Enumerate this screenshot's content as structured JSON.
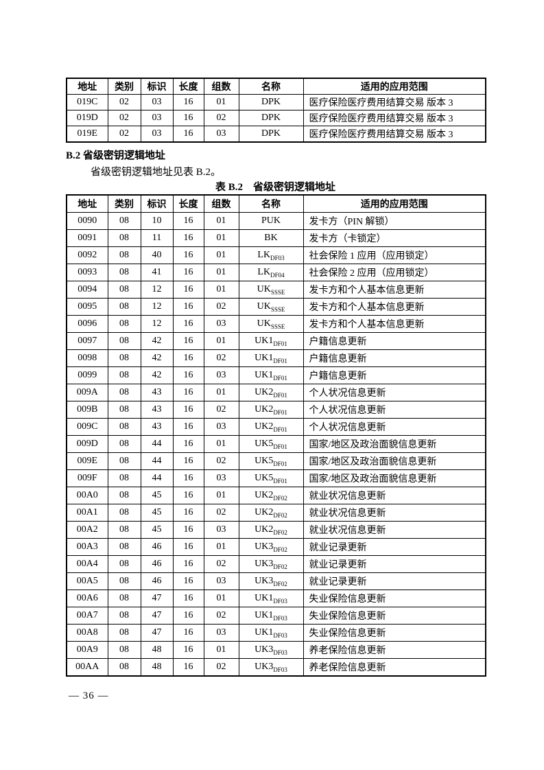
{
  "colors": {
    "text": "#000000",
    "background": "#ffffff",
    "table_border": "#000000"
  },
  "page": {
    "footer": "— 36 —"
  },
  "section": {
    "heading": "B.2 省级密钥逻辑地址",
    "paragraph": "省级密钥逻辑地址见表 B.2。"
  },
  "table_continued": {
    "headers": [
      "地址",
      "类别",
      "标识",
      "长度",
      "组数",
      "名称",
      "适用的应用范围"
    ],
    "rows": [
      {
        "address": "019C",
        "category": "02",
        "id": "03",
        "length": "16",
        "groups": "01",
        "name": {
          "base": "DPK",
          "sub": ""
        },
        "scope": "医疗保险医疗费用结算交易 版本 3"
      },
      {
        "address": "019D",
        "category": "02",
        "id": "03",
        "length": "16",
        "groups": "02",
        "name": {
          "base": "DPK",
          "sub": ""
        },
        "scope": "医疗保险医疗费用结算交易 版本 3"
      },
      {
        "address": "019E",
        "category": "02",
        "id": "03",
        "length": "16",
        "groups": "03",
        "name": {
          "base": "DPK",
          "sub": ""
        },
        "scope": "医疗保险医疗费用结算交易 版本 3"
      }
    ]
  },
  "table_b2": {
    "title": "表 B.2　省级密钥逻辑地址",
    "headers": [
      "地址",
      "类别",
      "标识",
      "长度",
      "组数",
      "名称",
      "适用的应用范围"
    ],
    "rows": [
      {
        "address": "0090",
        "category": "08",
        "id": "10",
        "length": "16",
        "groups": "01",
        "name": {
          "base": "PUK",
          "sub": ""
        },
        "scope": "发卡方（PIN 解锁）"
      },
      {
        "address": "0091",
        "category": "08",
        "id": "11",
        "length": "16",
        "groups": "01",
        "name": {
          "base": "BK",
          "sub": ""
        },
        "scope": "发卡方（卡锁定）"
      },
      {
        "address": "0092",
        "category": "08",
        "id": "40",
        "length": "16",
        "groups": "01",
        "name": {
          "base": "LK",
          "sub": "DF03"
        },
        "scope": "社会保险 1 应用（应用锁定）"
      },
      {
        "address": "0093",
        "category": "08",
        "id": "41",
        "length": "16",
        "groups": "01",
        "name": {
          "base": "LK",
          "sub": "DF04"
        },
        "scope": "社会保险 2 应用（应用锁定）"
      },
      {
        "address": "0094",
        "category": "08",
        "id": "12",
        "length": "16",
        "groups": "01",
        "name": {
          "base": "UK",
          "sub": "SSSE"
        },
        "scope": "发卡方和个人基本信息更新"
      },
      {
        "address": "0095",
        "category": "08",
        "id": "12",
        "length": "16",
        "groups": "02",
        "name": {
          "base": "UK",
          "sub": "SSSE"
        },
        "scope": "发卡方和个人基本信息更新"
      },
      {
        "address": "0096",
        "category": "08",
        "id": "12",
        "length": "16",
        "groups": "03",
        "name": {
          "base": "UK",
          "sub": "SSSE"
        },
        "scope": "发卡方和个人基本信息更新"
      },
      {
        "address": "0097",
        "category": "08",
        "id": "42",
        "length": "16",
        "groups": "01",
        "name": {
          "base": "UK1",
          "sub": "DF01"
        },
        "scope": "户籍信息更新"
      },
      {
        "address": "0098",
        "category": "08",
        "id": "42",
        "length": "16",
        "groups": "02",
        "name": {
          "base": "UK1",
          "sub": "DF01"
        },
        "scope": "户籍信息更新"
      },
      {
        "address": "0099",
        "category": "08",
        "id": "42",
        "length": "16",
        "groups": "03",
        "name": {
          "base": "UK1",
          "sub": "DF01"
        },
        "scope": "户籍信息更新"
      },
      {
        "address": "009A",
        "category": "08",
        "id": "43",
        "length": "16",
        "groups": "01",
        "name": {
          "base": "UK2",
          "sub": "DF01"
        },
        "scope": "个人状况信息更新"
      },
      {
        "address": "009B",
        "category": "08",
        "id": "43",
        "length": "16",
        "groups": "02",
        "name": {
          "base": "UK2",
          "sub": "DF01"
        },
        "scope": "个人状况信息更新"
      },
      {
        "address": "009C",
        "category": "08",
        "id": "43",
        "length": "16",
        "groups": "03",
        "name": {
          "base": "UK2",
          "sub": "DF01"
        },
        "scope": "个人状况信息更新"
      },
      {
        "address": "009D",
        "category": "08",
        "id": "44",
        "length": "16",
        "groups": "01",
        "name": {
          "base": "UK5",
          "sub": "DF01"
        },
        "scope": "国家/地区及政治面貌信息更新"
      },
      {
        "address": "009E",
        "category": "08",
        "id": "44",
        "length": "16",
        "groups": "02",
        "name": {
          "base": "UK5",
          "sub": "DF01"
        },
        "scope": "国家/地区及政治面貌信息更新"
      },
      {
        "address": "009F",
        "category": "08",
        "id": "44",
        "length": "16",
        "groups": "03",
        "name": {
          "base": "UK5",
          "sub": "DF01"
        },
        "scope": "国家/地区及政治面貌信息更新"
      },
      {
        "address": "00A0",
        "category": "08",
        "id": "45",
        "length": "16",
        "groups": "01",
        "name": {
          "base": "UK2",
          "sub": "DF02"
        },
        "scope": "就业状况信息更新"
      },
      {
        "address": "00A1",
        "category": "08",
        "id": "45",
        "length": "16",
        "groups": "02",
        "name": {
          "base": "UK2",
          "sub": "DF02"
        },
        "scope": "就业状况信息更新"
      },
      {
        "address": "00A2",
        "category": "08",
        "id": "45",
        "length": "16",
        "groups": "03",
        "name": {
          "base": "UK2",
          "sub": "DF02"
        },
        "scope": "就业状况信息更新"
      },
      {
        "address": "00A3",
        "category": "08",
        "id": "46",
        "length": "16",
        "groups": "01",
        "name": {
          "base": "UK3",
          "sub": "DF02"
        },
        "scope": "就业记录更新"
      },
      {
        "address": "00A4",
        "category": "08",
        "id": "46",
        "length": "16",
        "groups": "02",
        "name": {
          "base": "UK3",
          "sub": "DF02"
        },
        "scope": "就业记录更新"
      },
      {
        "address": "00A5",
        "category": "08",
        "id": "46",
        "length": "16",
        "groups": "03",
        "name": {
          "base": "UK3",
          "sub": "DF02"
        },
        "scope": "就业记录更新"
      },
      {
        "address": "00A6",
        "category": "08",
        "id": "47",
        "length": "16",
        "groups": "01",
        "name": {
          "base": "UK1",
          "sub": "DF03"
        },
        "scope": "失业保险信息更新"
      },
      {
        "address": "00A7",
        "category": "08",
        "id": "47",
        "length": "16",
        "groups": "02",
        "name": {
          "base": "UK1",
          "sub": "DF03"
        },
        "scope": "失业保险信息更新"
      },
      {
        "address": "00A8",
        "category": "08",
        "id": "47",
        "length": "16",
        "groups": "03",
        "name": {
          "base": "UK1",
          "sub": "DF03"
        },
        "scope": "失业保险信息更新"
      },
      {
        "address": "00A9",
        "category": "08",
        "id": "48",
        "length": "16",
        "groups": "01",
        "name": {
          "base": "UK3",
          "sub": "DF03"
        },
        "scope": "养老保险信息更新"
      },
      {
        "address": "00AA",
        "category": "08",
        "id": "48",
        "length": "16",
        "groups": "02",
        "name": {
          "base": "UK3",
          "sub": "DF03"
        },
        "scope": "养老保险信息更新"
      }
    ]
  }
}
